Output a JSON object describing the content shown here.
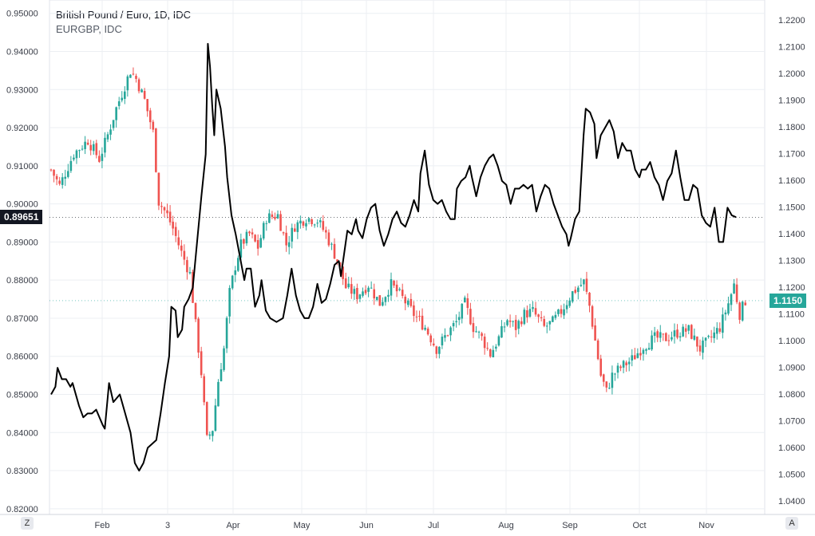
{
  "legend": {
    "title": "British Pound / Euro, 1D, IDC",
    "subtitle": "EURGBP, IDC"
  },
  "corner_left": "Z",
  "corner_right": "A",
  "tags": {
    "left_value": "0.89651",
    "right_value": "1.1150"
  },
  "colors": {
    "up": "#26a69a",
    "down": "#ef5350",
    "line": "#000000",
    "grid": "#eceff3",
    "left_tag_bg": "#131722",
    "right_tag_bg": "#26a69a"
  },
  "chart_data": [
    {
      "type": "candlestick",
      "name": "British Pound / Euro",
      "axis": "right",
      "ylim": [
        1.035,
        1.2275
      ],
      "yticks": [
        "1.2200",
        "1.2100",
        "1.2000",
        "1.1900",
        "1.1800",
        "1.1700",
        "1.1600",
        "1.1500",
        "1.1400",
        "1.1300",
        "1.1200",
        "1.1100",
        "1.1000",
        "1.0900",
        "1.0800",
        "1.0700",
        "1.0600",
        "1.0500",
        "1.0400"
      ],
      "x_labels": [
        "Feb",
        "3",
        "Apr",
        "May",
        "Jun",
        "Jul",
        "Aug",
        "Sep",
        "Oct",
        "Nov"
      ],
      "close_path": [
        [
          0,
          1.164
        ],
        [
          3,
          1.158
        ],
        [
          8,
          1.17
        ],
        [
          13,
          1.175
        ],
        [
          17,
          1.168
        ],
        [
          20,
          1.177
        ],
        [
          23,
          1.187
        ],
        [
          28,
          1.201
        ],
        [
          30,
          1.198
        ],
        [
          33,
          1.19
        ],
        [
          36,
          1.178
        ],
        [
          38,
          1.152
        ],
        [
          41,
          1.147
        ],
        [
          43,
          1.142
        ],
        [
          46,
          1.133
        ],
        [
          49,
          1.125
        ],
        [
          51,
          1.106
        ],
        [
          53,
          1.088
        ],
        [
          55,
          1.063
        ],
        [
          57,
          1.067
        ],
        [
          59,
          1.085
        ],
        [
          61,
          1.097
        ],
        [
          63,
          1.118
        ],
        [
          65,
          1.128
        ],
        [
          67,
          1.136
        ],
        [
          70,
          1.14
        ],
        [
          73,
          1.135
        ],
        [
          76,
          1.146
        ],
        [
          80,
          1.147
        ],
        [
          83,
          1.136
        ],
        [
          86,
          1.143
        ],
        [
          90,
          1.146
        ],
        [
          94,
          1.145
        ],
        [
          97,
          1.14
        ],
        [
          101,
          1.13
        ],
        [
          104,
          1.12
        ],
        [
          108,
          1.117
        ],
        [
          112,
          1.121
        ],
        [
          116,
          1.114
        ],
        [
          120,
          1.121
        ],
        [
          124,
          1.116
        ],
        [
          128,
          1.11
        ],
        [
          132,
          1.105
        ],
        [
          136,
          1.097
        ],
        [
          140,
          1.103
        ],
        [
          143,
          1.107
        ],
        [
          146,
          1.114
        ],
        [
          149,
          1.105
        ],
        [
          152,
          1.101
        ],
        [
          155,
          1.095
        ],
        [
          158,
          1.101
        ],
        [
          161,
          1.108
        ],
        [
          164,
          1.105
        ],
        [
          167,
          1.11
        ],
        [
          170,
          1.111
        ],
        [
          174,
          1.105
        ],
        [
          177,
          1.107
        ],
        [
          180,
          1.111
        ],
        [
          184,
          1.118
        ],
        [
          188,
          1.122
        ],
        [
          190,
          1.113
        ],
        [
          192,
          1.1
        ],
        [
          194,
          1.087
        ],
        [
          196,
          1.081
        ],
        [
          198,
          1.087
        ],
        [
          201,
          1.09
        ],
        [
          205,
          1.093
        ],
        [
          209,
          1.098
        ],
        [
          213,
          1.101
        ],
        [
          217,
          1.101
        ],
        [
          221,
          1.103
        ],
        [
          225,
          1.104
        ],
        [
          229,
          1.097
        ],
        [
          232,
          1.1
        ],
        [
          236,
          1.105
        ],
        [
          239,
          1.114
        ],
        [
          241,
          1.121
        ],
        [
          243,
          1.11
        ],
        [
          245,
          1.115
        ]
      ],
      "first_close": 1.164,
      "last_close": 1.115
    },
    {
      "type": "line",
      "name": "EURGBP, IDC",
      "axis": "left",
      "ylim": [
        0.8185,
        0.9535
      ],
      "yticks": [
        "0.95000",
        "0.94000",
        "0.93000",
        "0.92000",
        "0.91000",
        "0.90000",
        "0.89000",
        "0.88000",
        "0.87000",
        "0.86000",
        "0.85000",
        "0.84000",
        "0.83000",
        "0.82000"
      ],
      "points": [
        [
          0,
          0.85
        ],
        [
          2,
          0.852
        ],
        [
          3,
          0.857
        ],
        [
          5,
          0.854
        ],
        [
          7,
          0.854
        ],
        [
          9,
          0.852
        ],
        [
          10,
          0.853
        ],
        [
          13,
          0.847
        ],
        [
          15,
          0.844
        ],
        [
          17,
          0.845
        ],
        [
          19,
          0.845
        ],
        [
          21,
          0.846
        ],
        [
          24,
          0.842
        ],
        [
          25,
          0.841
        ],
        [
          27,
          0.853
        ],
        [
          29,
          0.848
        ],
        [
          32,
          0.85
        ],
        [
          34,
          0.846
        ],
        [
          37,
          0.84
        ],
        [
          39,
          0.832
        ],
        [
          41,
          0.83
        ],
        [
          43,
          0.832
        ],
        [
          45,
          0.836
        ],
        [
          47,
          0.837
        ],
        [
          49,
          0.838
        ],
        [
          51,
          0.845
        ],
        [
          53,
          0.853
        ],
        [
          55,
          0.86
        ],
        [
          56,
          0.873
        ],
        [
          58,
          0.872
        ],
        [
          59,
          0.865
        ],
        [
          61,
          0.867
        ],
        [
          62,
          0.873
        ],
        [
          64,
          0.875
        ],
        [
          66,
          0.878
        ],
        [
          68,
          0.89
        ],
        [
          70,
          0.902
        ],
        [
          72,
          0.913
        ],
        [
          73,
          0.942
        ],
        [
          74,
          0.936
        ],
        [
          75,
          0.926
        ],
        [
          76,
          0.918
        ],
        [
          77,
          0.93
        ],
        [
          79,
          0.925
        ],
        [
          81,
          0.915
        ],
        [
          82,
          0.907
        ],
        [
          84,
          0.897
        ],
        [
          86,
          0.892
        ],
        [
          88,
          0.886
        ],
        [
          90,
          0.88
        ],
        [
          91,
          0.883
        ],
        [
          93,
          0.883
        ],
        [
          95,
          0.873
        ],
        [
          97,
          0.876
        ],
        [
          98,
          0.88
        ],
        [
          100,
          0.872
        ],
        [
          102,
          0.87
        ],
        [
          105,
          0.869
        ],
        [
          108,
          0.87
        ],
        [
          110,
          0.876
        ],
        [
          112,
          0.883
        ],
        [
          114,
          0.876
        ],
        [
          116,
          0.872
        ],
        [
          118,
          0.87
        ],
        [
          120,
          0.87
        ],
        [
          122,
          0.873
        ],
        [
          124,
          0.879
        ],
        [
          126,
          0.874
        ],
        [
          128,
          0.875
        ],
        [
          130,
          0.879
        ],
        [
          132,
          0.884
        ],
        [
          134,
          0.885
        ],
        [
          135,
          0.881
        ],
        [
          137,
          0.889
        ],
        [
          138,
          0.893
        ],
        [
          140,
          0.892
        ],
        [
          142,
          0.896
        ],
        [
          143,
          0.893
        ],
        [
          145,
          0.891
        ],
        [
          147,
          0.896
        ],
        [
          149,
          0.899
        ],
        [
          151,
          0.9
        ],
        [
          153,
          0.893
        ],
        [
          155,
          0.889
        ],
        [
          157,
          0.892
        ],
        [
          159,
          0.896
        ],
        [
          161,
          0.898
        ],
        [
          163,
          0.895
        ],
        [
          165,
          0.894
        ],
        [
          167,
          0.897
        ],
        [
          169,
          0.901
        ],
        [
          171,
          0.898
        ],
        [
          172,
          0.908
        ],
        [
          174,
          0.914
        ],
        [
          176,
          0.905
        ],
        [
          178,
          0.901
        ],
        [
          180,
          0.9
        ],
        [
          182,
          0.901
        ],
        [
          184,
          0.898
        ],
        [
          186,
          0.896
        ],
        [
          188,
          0.896
        ],
        [
          189,
          0.904
        ],
        [
          191,
          0.906
        ],
        [
          193,
          0.907
        ],
        [
          195,
          0.91
        ],
        [
          196,
          0.907
        ],
        [
          198,
          0.902
        ],
        [
          200,
          0.907
        ],
        [
          202,
          0.91
        ],
        [
          204,
          0.912
        ],
        [
          206,
          0.913
        ],
        [
          208,
          0.91
        ],
        [
          210,
          0.906
        ],
        [
          212,
          0.905
        ],
        [
          214,
          0.9
        ],
        [
          216,
          0.904
        ],
        [
          218,
          0.904
        ],
        [
          220,
          0.905
        ],
        [
          222,
          0.904
        ],
        [
          224,
          0.905
        ],
        [
          226,
          0.898
        ],
        [
          228,
          0.902
        ],
        [
          230,
          0.905
        ],
        [
          232,
          0.904
        ],
        [
          234,
          0.9
        ],
        [
          236,
          0.897
        ],
        [
          238,
          0.894
        ],
        [
          240,
          0.892
        ],
        [
          241,
          0.889
        ],
        [
          242,
          0.891
        ],
        [
          244,
          0.896
        ],
        [
          246,
          0.898
        ],
        [
          247,
          0.908
        ],
        [
          248,
          0.918
        ],
        [
          249,
          0.925
        ],
        [
          251,
          0.924
        ],
        [
          253,
          0.921
        ],
        [
          254,
          0.912
        ],
        [
          256,
          0.918
        ],
        [
          258,
          0.92
        ],
        [
          260,
          0.922
        ],
        [
          262,
          0.919
        ],
        [
          264,
          0.912
        ],
        [
          266,
          0.916
        ],
        [
          268,
          0.914
        ],
        [
          270,
          0.914
        ],
        [
          272,
          0.909
        ],
        [
          274,
          0.907
        ],
        [
          275,
          0.909
        ],
        [
          277,
          0.909
        ],
        [
          279,
          0.911
        ],
        [
          281,
          0.907
        ],
        [
          283,
          0.905
        ],
        [
          285,
          0.901
        ],
        [
          287,
          0.906
        ],
        [
          289,
          0.908
        ],
        [
          291,
          0.914
        ],
        [
          293,
          0.907
        ],
        [
          295,
          0.901
        ],
        [
          297,
          0.901
        ],
        [
          299,
          0.905
        ],
        [
          301,
          0.904
        ],
        [
          303,
          0.897
        ],
        [
          305,
          0.895
        ],
        [
          307,
          0.894
        ],
        [
          309,
          0.899
        ],
        [
          311,
          0.89
        ],
        [
          313,
          0.89
        ],
        [
          315,
          0.899
        ],
        [
          317,
          0.897
        ],
        [
          319,
          0.8965
        ]
      ],
      "last_value": 0.89651
    }
  ]
}
